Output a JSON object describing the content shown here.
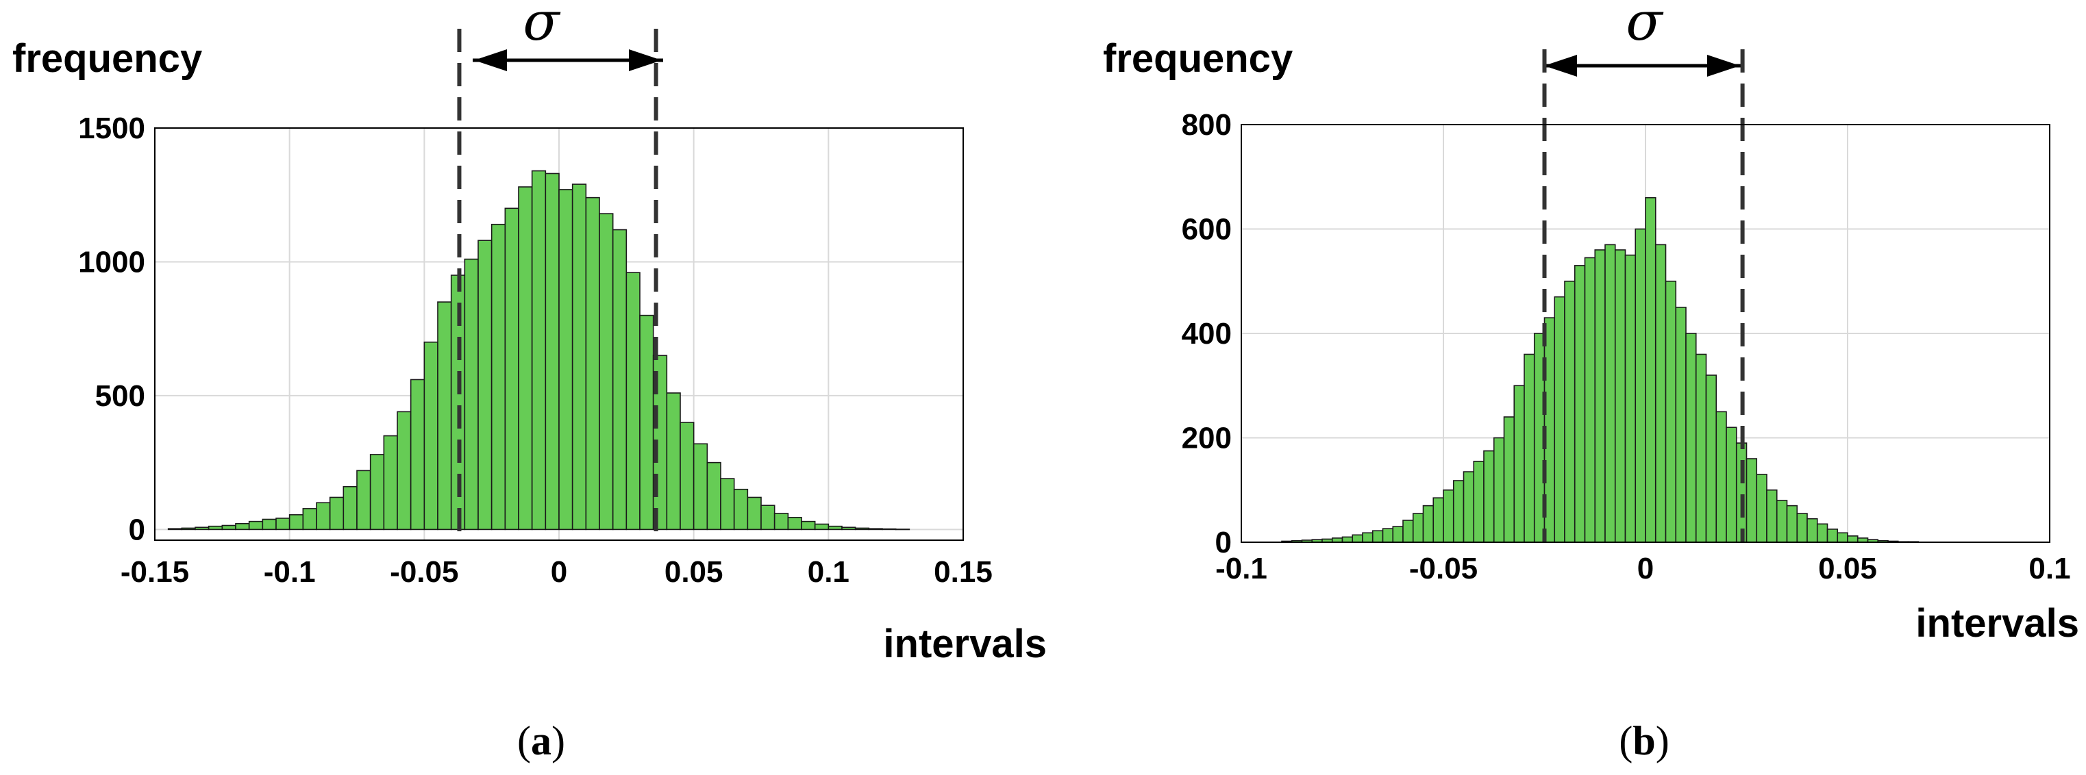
{
  "colors": {
    "bar_fill": "#66cc55",
    "bar_stroke": "#1a1a1a",
    "grid": "#d9d9d9",
    "dashed_line": "#333333",
    "axis": "#000000"
  },
  "chart_data": [
    {
      "type": "bar",
      "panel_label": "a",
      "ylabel": "frequency",
      "xlabel": "intervals",
      "sigma_symbol": "σ",
      "xlim": [
        -0.15,
        0.15
      ],
      "ylim": [
        -40,
        1500
      ],
      "x_ticks": [
        -0.15,
        -0.1,
        -0.05,
        0,
        0.05,
        0.1,
        0.15
      ],
      "x_tick_labels": [
        "-0.15",
        "-0.1",
        "-0.05",
        "0",
        "0.05",
        "0.1",
        "0.15"
      ],
      "y_ticks": [
        0,
        500,
        1000,
        1500
      ],
      "y_tick_labels": [
        "0",
        "500",
        "1000",
        "1500"
      ],
      "grid": true,
      "sigma_lines_x": [
        -0.037,
        0.036
      ],
      "bin_start": -0.145,
      "bin_width": 0.005,
      "values": [
        3,
        5,
        8,
        12,
        15,
        22,
        30,
        38,
        42,
        55,
        78,
        100,
        120,
        160,
        220,
        280,
        350,
        440,
        560,
        700,
        850,
        950,
        1010,
        1080,
        1140,
        1200,
        1280,
        1340,
        1330,
        1270,
        1290,
        1240,
        1180,
        1120,
        960,
        800,
        650,
        510,
        400,
        320,
        250,
        190,
        150,
        120,
        90,
        60,
        45,
        30,
        20,
        12,
        8,
        5,
        3,
        2,
        1,
        0,
        0,
        0,
        0
      ]
    },
    {
      "type": "bar",
      "panel_label": "b",
      "ylabel": "frequency",
      "xlabel": "intervals",
      "sigma_symbol": "σ",
      "xlim": [
        -0.1,
        0.1
      ],
      "ylim": [
        0,
        800
      ],
      "x_ticks": [
        -0.1,
        -0.05,
        0,
        0.05,
        0.1
      ],
      "x_tick_labels": [
        "-0.1",
        "-0.05",
        "0",
        "0.05",
        "0.1"
      ],
      "y_ticks": [
        0,
        200,
        400,
        600,
        800
      ],
      "y_tick_labels": [
        "0",
        "200",
        "400",
        "600",
        "800"
      ],
      "grid": true,
      "sigma_lines_x": [
        -0.025,
        0.024
      ],
      "bin_start": -0.09,
      "bin_width": 0.0025,
      "values": [
        2,
        3,
        4,
        5,
        6,
        8,
        10,
        14,
        18,
        22,
        26,
        30,
        42,
        55,
        70,
        85,
        100,
        118,
        135,
        155,
        175,
        200,
        240,
        300,
        360,
        400,
        430,
        470,
        500,
        530,
        545,
        560,
        570,
        560,
        550,
        600,
        660,
        570,
        500,
        450,
        400,
        360,
        320,
        250,
        220,
        190,
        160,
        130,
        100,
        80,
        70,
        55,
        45,
        35,
        25,
        18,
        12,
        8,
        5,
        3,
        2,
        1,
        1,
        0,
        0,
        0,
        0,
        0,
        0,
        0,
        0,
        0,
        0,
        0,
        0
      ]
    }
  ]
}
